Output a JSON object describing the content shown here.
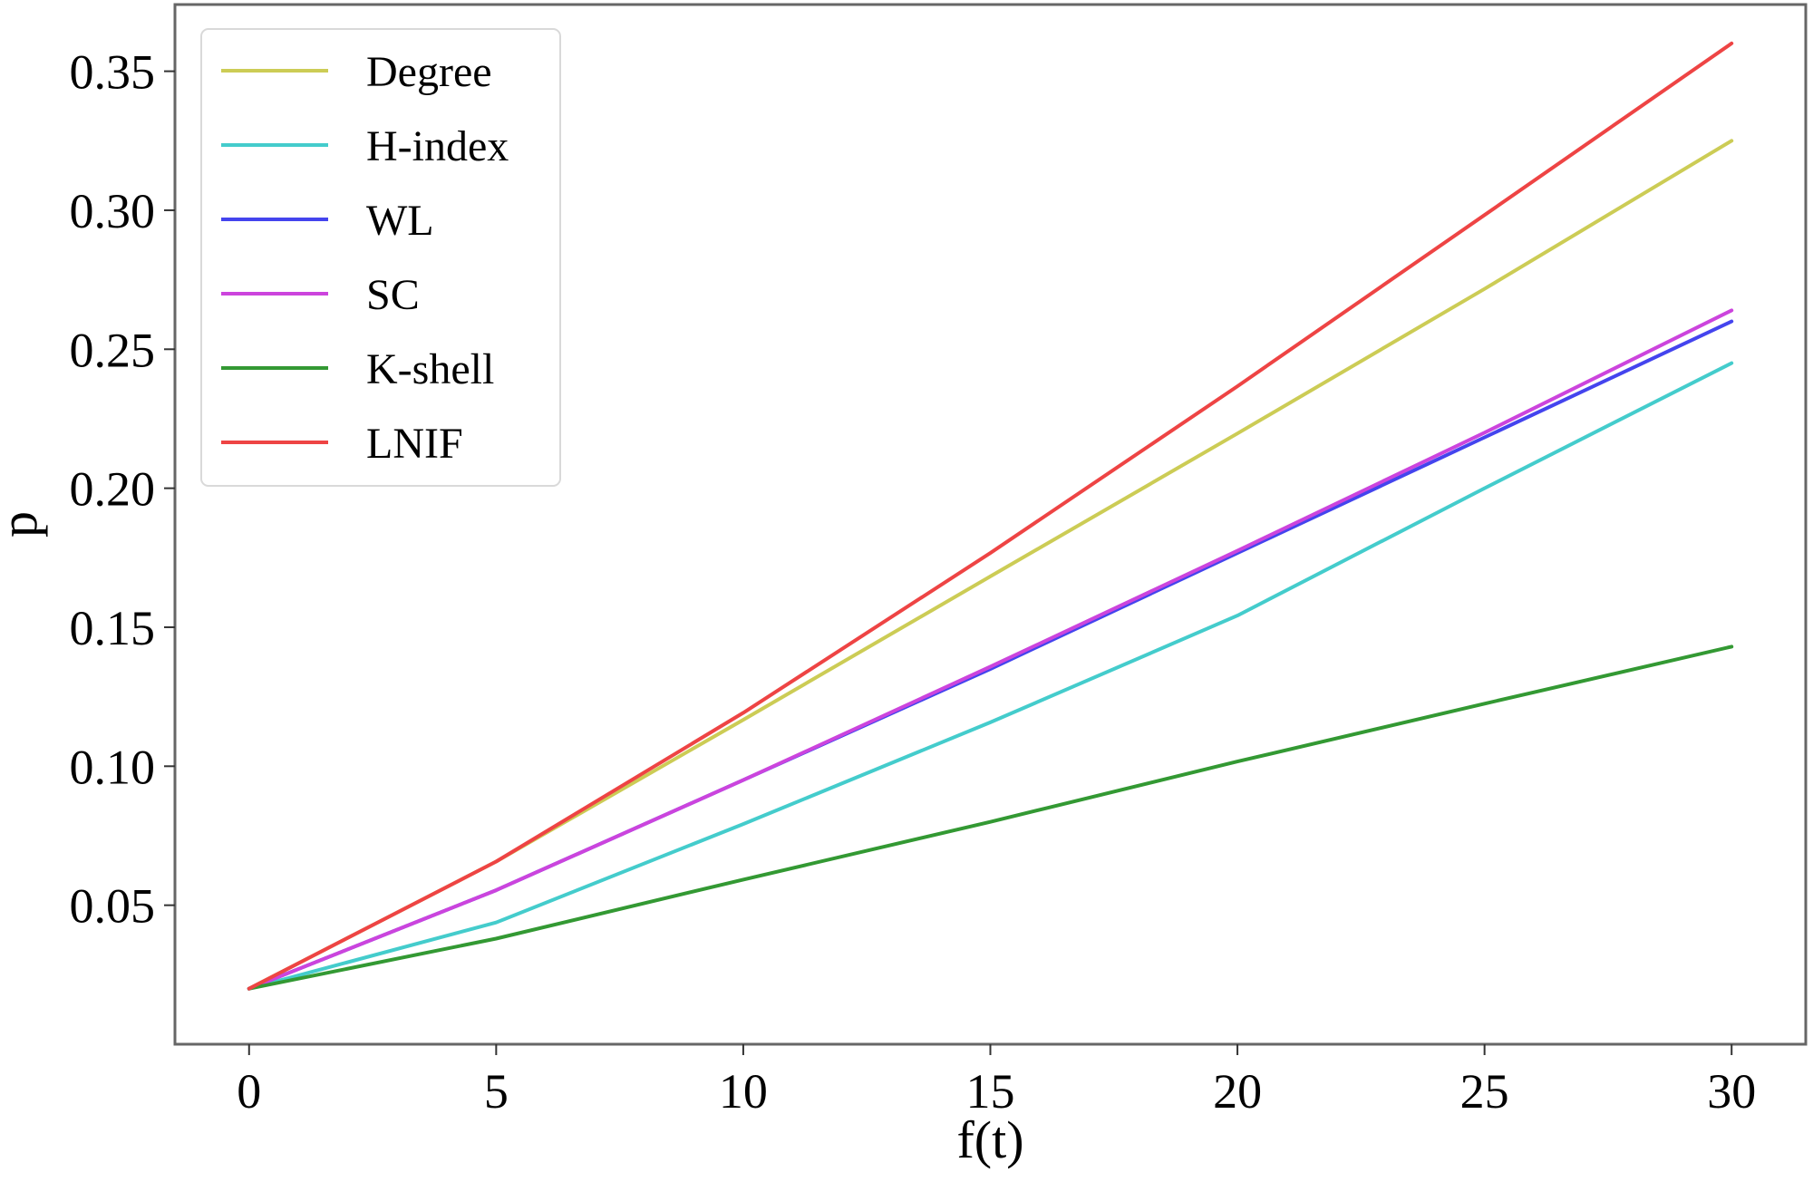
{
  "chart_data": {
    "type": "line",
    "title": "",
    "xlabel": "f(t)",
    "ylabel": "p",
    "xlim": [
      -1.5,
      31.5
    ],
    "ylim": [
      0.0,
      0.374
    ],
    "xticks": [
      0,
      5,
      10,
      15,
      20,
      25,
      30
    ],
    "xtick_labels": [
      "0",
      "5",
      "10",
      "15",
      "20",
      "25",
      "30"
    ],
    "yticks": [
      0.05,
      0.1,
      0.15,
      0.2,
      0.25,
      0.3,
      0.35
    ],
    "ytick_labels": [
      "0.05",
      "0.10",
      "0.15",
      "0.20",
      "0.25",
      "0.30",
      "0.35"
    ],
    "grid": false,
    "legend_position": "upper-left",
    "x": [
      0,
      5,
      10,
      15,
      20,
      25,
      30
    ],
    "series": [
      {
        "name": "Degree",
        "color": "#cccc55",
        "values": [
          0.02,
          0.0657,
          0.1167,
          0.1683,
          0.2197,
          0.2717,
          0.325
        ]
      },
      {
        "name": "H-index",
        "color": "#44cccc",
        "values": [
          0.02,
          0.0438,
          0.0792,
          0.1158,
          0.1542,
          0.2,
          0.245
        ]
      },
      {
        "name": "WL",
        "color": "#4444ee",
        "values": [
          0.02,
          0.0554,
          0.095,
          0.135,
          0.1767,
          0.2183,
          0.26
        ]
      },
      {
        "name": "SC",
        "color": "#cc44dd",
        "values": [
          0.02,
          0.0554,
          0.095,
          0.1358,
          0.1775,
          0.22,
          0.264
        ]
      },
      {
        "name": "K-shell",
        "color": "#339933",
        "values": [
          0.02,
          0.038,
          0.0592,
          0.08,
          0.1017,
          0.1225,
          0.143
        ]
      },
      {
        "name": "LNIF",
        "color": "#ee4444",
        "values": [
          0.02,
          0.0657,
          0.1192,
          0.1767,
          0.2367,
          0.2983,
          0.36
        ]
      }
    ]
  }
}
